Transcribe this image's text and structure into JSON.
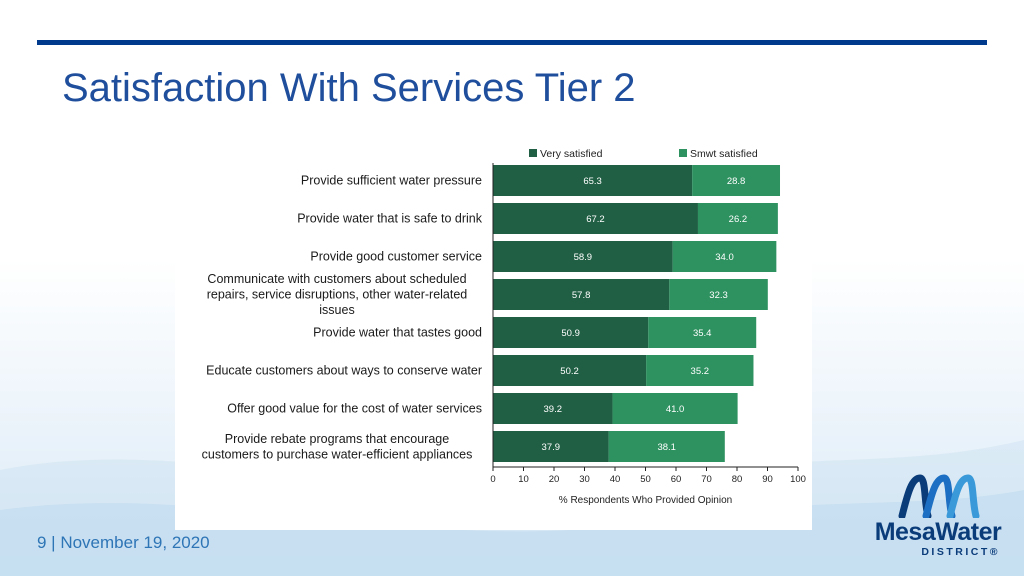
{
  "slide": {
    "title": "Satisfaction With Services Tier 2",
    "footer": "9  |  November 19, 2020",
    "accent": "#003a8c"
  },
  "logo": {
    "name": "mesa-water-logo",
    "word": "MesaWater",
    "sub": "DISTRICT®",
    "color": "#0b3c7a"
  },
  "chart_data": {
    "type": "bar",
    "orientation": "horizontal",
    "stacked": true,
    "categories": [
      "Provide sufficient water pressure",
      "Provide water that is safe to drink",
      "Provide good customer service",
      "Communicate with customers about scheduled repairs, service disruptions, other water-related issues",
      "Provide water that tastes good",
      "Educate customers about ways to conserve water",
      "Offer good value for the cost of water services",
      "Provide rebate programs that encourage customers to purchase water-efficient appliances"
    ],
    "category_lines": [
      [
        "Provide sufficient water pressure"
      ],
      [
        "Provide water that is safe to drink"
      ],
      [
        "Provide good customer service"
      ],
      [
        "Communicate with customers about scheduled",
        "repairs, service disruptions, other water-related",
        "issues"
      ],
      [
        "Provide water that tastes good"
      ],
      [
        "Educate customers about ways to conserve water"
      ],
      [
        "Offer good value for the cost of water services"
      ],
      [
        "Provide rebate programs that encourage",
        "customers to purchase water-efficient appliances"
      ]
    ],
    "series": [
      {
        "name": "Very satisfied",
        "color": "#215f45",
        "values": [
          65.3,
          67.2,
          58.9,
          57.8,
          50.9,
          50.2,
          39.2,
          37.9
        ]
      },
      {
        "name": "Smwt satisfied",
        "color": "#2e9160",
        "values": [
          28.8,
          26.2,
          34.0,
          32.3,
          35.4,
          35.2,
          41.0,
          38.1
        ]
      }
    ],
    "xlabel": "% Respondents Who Provided Opinion",
    "xlim": [
      0,
      100
    ],
    "xticks": [
      0,
      10,
      20,
      30,
      40,
      50,
      60,
      70,
      80,
      90,
      100
    ],
    "legend": "top",
    "grid": false
  }
}
